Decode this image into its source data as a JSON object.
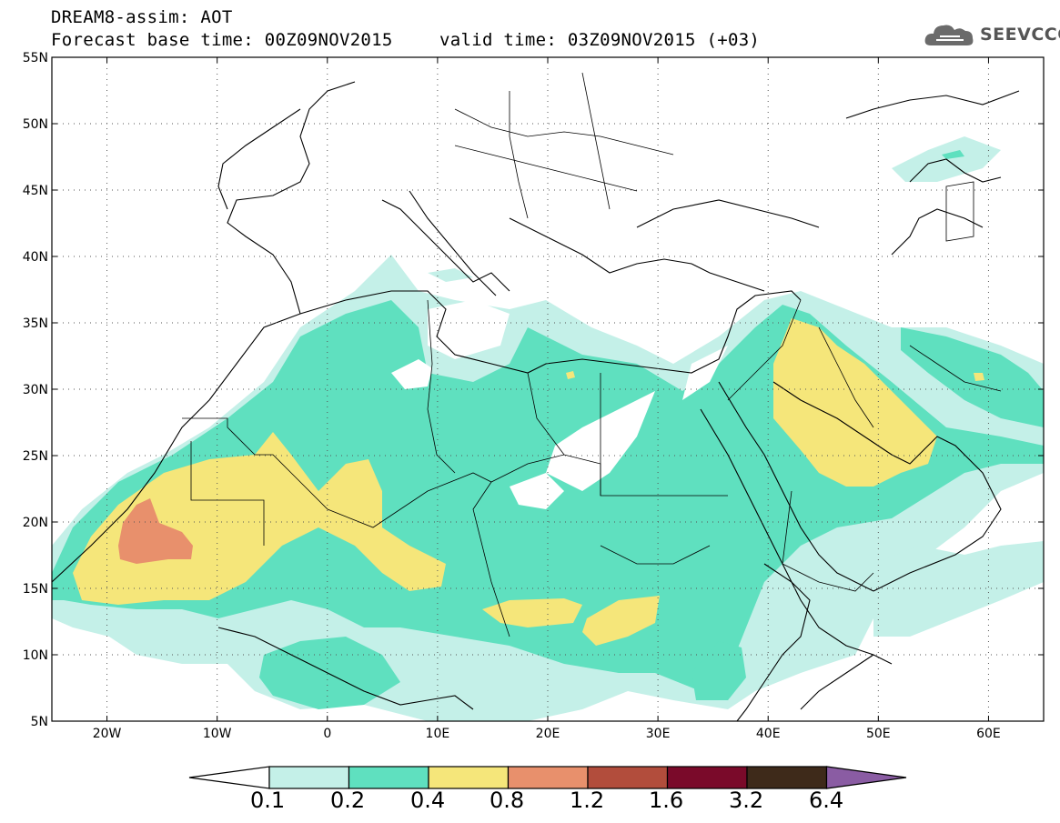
{
  "title": {
    "line1": "DREAM8-assim: AOT",
    "line2": "Forecast base time: 00Z09NOV2015",
    "valid": "valid time: 03Z09NOV2015 (+03)"
  },
  "logo": {
    "text": "SEEVCCC",
    "icon": "cloud-icon"
  },
  "map": {
    "lon_range": [
      -25,
      65
    ],
    "lat_range": [
      5,
      55
    ],
    "lat_ticks": [
      "5N",
      "10N",
      "15N",
      "20N",
      "25N",
      "30N",
      "35N",
      "40N",
      "45N",
      "50N",
      "55N"
    ],
    "lon_ticks": [
      "20W",
      "10W",
      "0",
      "10E",
      "20E",
      "30E",
      "40E",
      "50E",
      "60E"
    ],
    "gridlines": "dotted"
  },
  "colorbar": {
    "levels": [
      "0.1",
      "0.2",
      "0.4",
      "0.8",
      "1.2",
      "1.6",
      "3.2",
      "6.4"
    ],
    "colors": [
      "#c4f0e8",
      "#5fe0bf",
      "#f5e67a",
      "#e8906c",
      "#b24d3c",
      "#7a0a2a",
      "#3e2a1a",
      "#8a5ca3"
    ],
    "under_color": "#ffffff"
  }
}
